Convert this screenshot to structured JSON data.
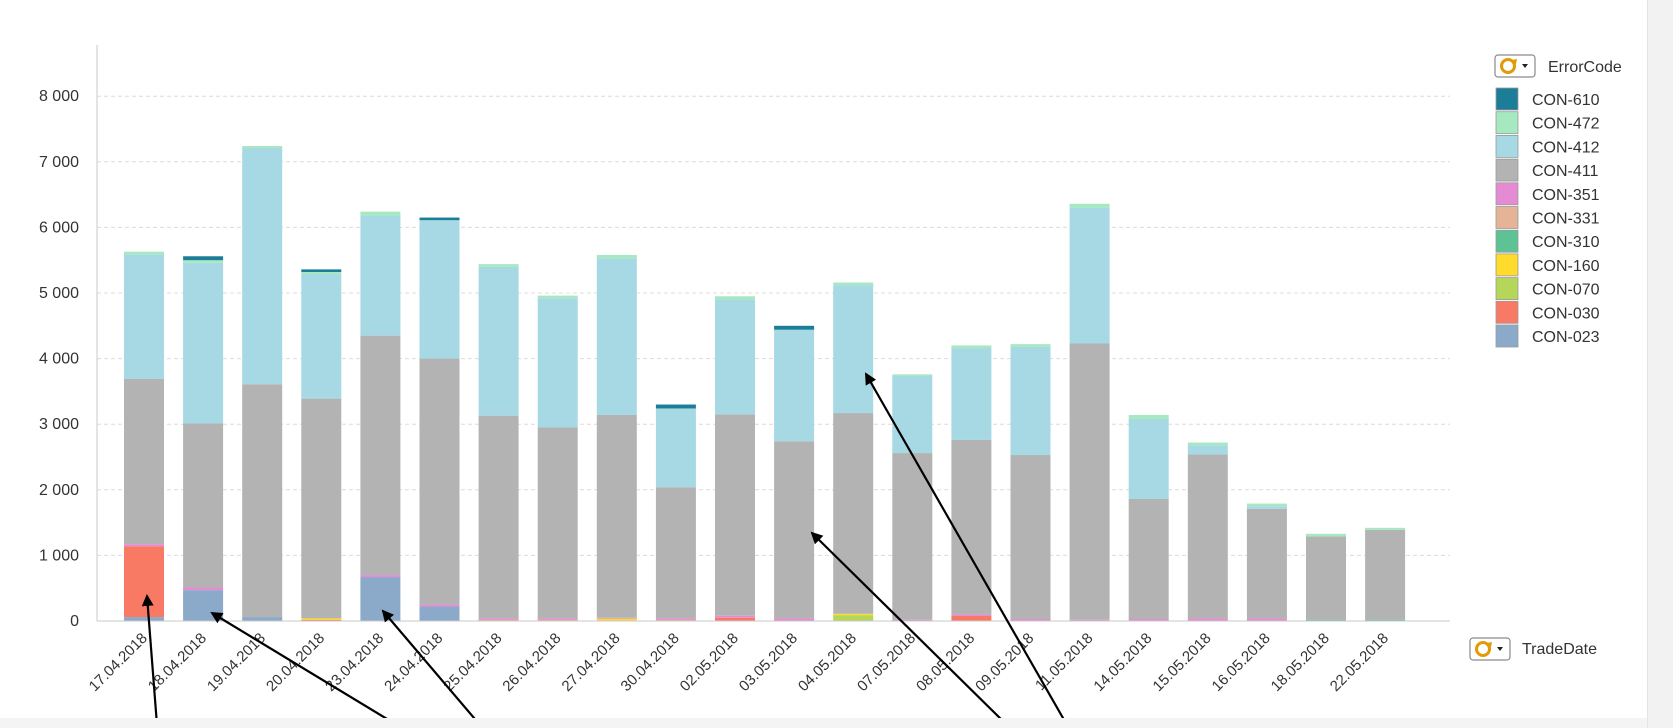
{
  "chart_data": {
    "type": "bar",
    "stacked": true,
    "title": "",
    "xlabel": "TradeDate",
    "ylabel": "",
    "ylim": [
      0,
      8500
    ],
    "yticks": [
      0,
      1000,
      2000,
      3000,
      4000,
      5000,
      6000,
      7000,
      8000
    ],
    "ytick_labels": [
      "0",
      "1 000",
      "2 000",
      "3 000",
      "4 000",
      "5 000",
      "6 000",
      "7 000",
      "8 000"
    ],
    "grid": true,
    "legend_title": "ErrorCode",
    "legend_position": "right",
    "legend_order": [
      "CON-610",
      "CON-472",
      "CON-412",
      "CON-411",
      "CON-351",
      "CON-331",
      "CON-310",
      "CON-160",
      "CON-070",
      "CON-030",
      "CON-023"
    ],
    "categories": [
      "17.04.2018",
      "18.04.2018",
      "19.04.2018",
      "20.04.2018",
      "23.04.2018",
      "24.04.2018",
      "25.04.2018",
      "26.04.2018",
      "27.04.2018",
      "30.04.2018",
      "02.05.2018",
      "03.05.2018",
      "04.05.2018",
      "07.05.2018",
      "08.05.2018",
      "09.05.2018",
      "11.05.2018",
      "14.05.2018",
      "15.05.2018",
      "16.05.2018",
      "18.05.2018",
      "22.05.2018"
    ],
    "series": [
      {
        "name": "CON-023",
        "color": "#8ba9c9",
        "values": [
          60,
          470,
          60,
          0,
          670,
          220,
          0,
          0,
          0,
          0,
          0,
          0,
          0,
          0,
          0,
          0,
          0,
          0,
          0,
          0,
          0,
          0
        ]
      },
      {
        "name": "CON-030",
        "color": "#f97a64",
        "values": [
          1080,
          0,
          0,
          20,
          0,
          0,
          0,
          0,
          0,
          0,
          50,
          0,
          0,
          0,
          80,
          0,
          0,
          0,
          0,
          0,
          0,
          0
        ]
      },
      {
        "name": "CON-070",
        "color": "#b5d65b",
        "values": [
          0,
          0,
          0,
          0,
          0,
          0,
          0,
          0,
          0,
          0,
          0,
          0,
          90,
          0,
          0,
          0,
          0,
          0,
          0,
          0,
          0,
          0
        ]
      },
      {
        "name": "CON-160",
        "color": "#ffdb2e",
        "values": [
          0,
          0,
          0,
          20,
          0,
          0,
          0,
          0,
          30,
          0,
          0,
          0,
          20,
          0,
          0,
          0,
          0,
          0,
          0,
          0,
          0,
          0
        ]
      },
      {
        "name": "CON-310",
        "color": "#5ec394",
        "values": [
          0,
          0,
          0,
          0,
          0,
          0,
          0,
          0,
          0,
          0,
          0,
          0,
          0,
          0,
          0,
          0,
          0,
          0,
          0,
          0,
          20,
          20
        ]
      },
      {
        "name": "CON-331",
        "color": "#e5b496",
        "values": [
          0,
          0,
          0,
          0,
          0,
          0,
          20,
          20,
          20,
          20,
          0,
          0,
          0,
          0,
          0,
          0,
          0,
          0,
          0,
          0,
          0,
          0
        ]
      },
      {
        "name": "CON-351",
        "color": "#e58bd3",
        "values": [
          30,
          40,
          0,
          0,
          30,
          30,
          20,
          20,
          0,
          20,
          30,
          40,
          0,
          20,
          20,
          30,
          20,
          30,
          40,
          40,
          0,
          0
        ]
      },
      {
        "name": "CON-411",
        "color": "#b3b3b3",
        "values": [
          2520,
          2500,
          3550,
          3350,
          3650,
          3750,
          3090,
          2910,
          3090,
          2000,
          3070,
          2700,
          3060,
          2540,
          2660,
          2500,
          4210,
          1830,
          2500,
          1670,
          1270,
          1370
        ]
      },
      {
        "name": "CON-412",
        "color": "#a6d9e3",
        "values": [
          1900,
          2450,
          3600,
          1900,
          1830,
          2110,
          2270,
          1970,
          2390,
          1200,
          1750,
          1700,
          1950,
          1180,
          1400,
          1650,
          2070,
          1220,
          140,
          40,
          0,
          0
        ]
      },
      {
        "name": "CON-472",
        "color": "#a6e8c0",
        "values": [
          40,
          40,
          30,
          30,
          60,
          0,
          40,
          40,
          50,
          0,
          50,
          0,
          40,
          20,
          40,
          40,
          60,
          60,
          40,
          40,
          40,
          30
        ]
      },
      {
        "name": "CON-610",
        "color": "#1c7d99",
        "values": [
          0,
          60,
          0,
          40,
          0,
          40,
          0,
          0,
          0,
          60,
          0,
          60,
          0,
          0,
          0,
          0,
          0,
          0,
          0,
          0,
          0,
          0
        ]
      }
    ],
    "annotations": [
      {
        "type": "arrow",
        "text": ""
      },
      {
        "type": "arrow",
        "text": ""
      },
      {
        "type": "arrow",
        "text": ""
      },
      {
        "type": "arrow",
        "text": ""
      },
      {
        "type": "arrow",
        "text": ""
      }
    ]
  },
  "icons": {
    "legend_cycle": "cycle-dropdown-icon",
    "axis_cycle": "cycle-dropdown-icon"
  },
  "colors": {
    "grid": "#dcdcdc",
    "axis": "#c8c8c8",
    "text": "#333333",
    "arrow": "#000000",
    "icon_orange": "#e29a06"
  }
}
